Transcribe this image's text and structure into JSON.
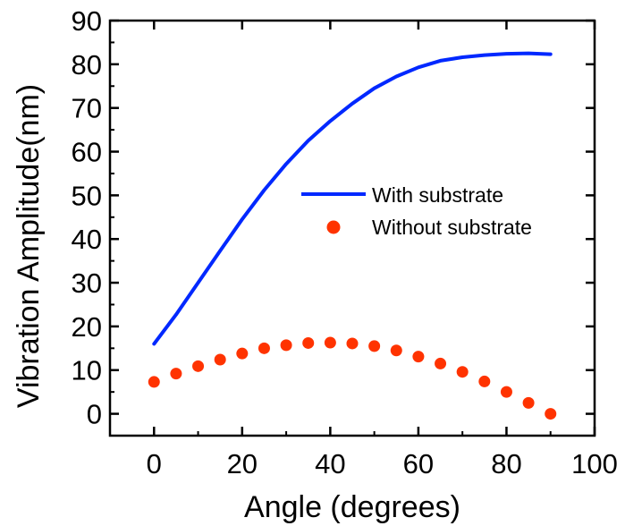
{
  "chart_data": {
    "type": "line",
    "xlabel": "Angle (degrees)",
    "ylabel": "Vibration Amplitude(nm)",
    "xlim": [
      -10,
      100
    ],
    "ylim": [
      -5,
      90
    ],
    "xticks": [
      0,
      20,
      40,
      60,
      80,
      100
    ],
    "yticks": [
      0,
      10,
      20,
      30,
      40,
      50,
      60,
      70,
      80,
      90
    ],
    "grid": false,
    "legend_position": "right-middle",
    "series": [
      {
        "name": "With substrate",
        "style": "line",
        "color": "#0028ff",
        "x": [
          0,
          5,
          10,
          15,
          20,
          25,
          30,
          35,
          40,
          45,
          50,
          55,
          60,
          65,
          70,
          75,
          80,
          85,
          90
        ],
        "y": [
          16.0,
          22.7,
          30.0,
          37.3,
          44.5,
          51.2,
          57.2,
          62.5,
          67.0,
          71.0,
          74.5,
          77.2,
          79.3,
          80.8,
          81.6,
          82.1,
          82.4,
          82.5,
          82.3
        ]
      },
      {
        "name": "Without substrate",
        "style": "scatter",
        "color": "#ff3300",
        "x": [
          0,
          5,
          10,
          15,
          20,
          25,
          30,
          35,
          40,
          45,
          50,
          55,
          60,
          65,
          70,
          75,
          80,
          85,
          90
        ],
        "y": [
          7.3,
          9.2,
          10.9,
          12.4,
          13.8,
          15.0,
          15.7,
          16.2,
          16.3,
          16.1,
          15.5,
          14.5,
          13.1,
          11.5,
          9.6,
          7.4,
          5.0,
          2.5,
          0.0
        ]
      }
    ]
  }
}
